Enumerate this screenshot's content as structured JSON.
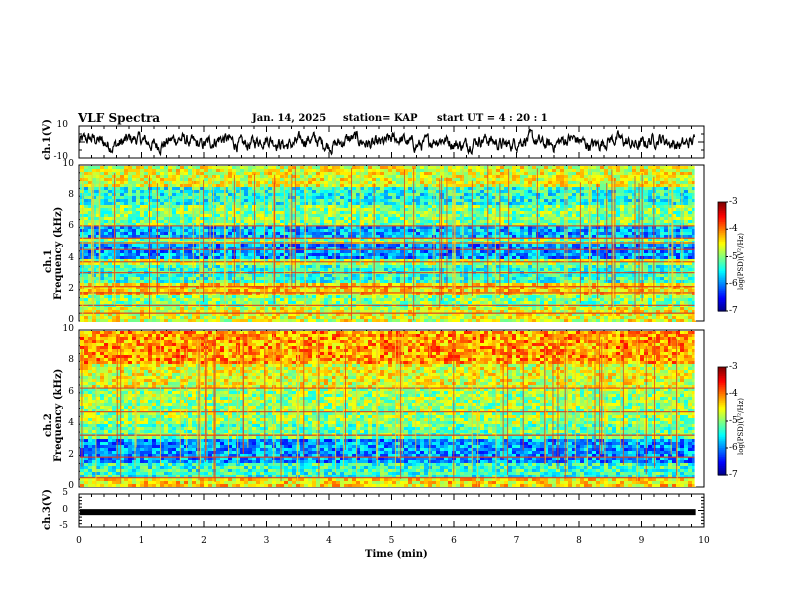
{
  "header": {
    "title": "VLF Spectra",
    "date": "Jan. 14, 2025",
    "station": "station= KAP",
    "start_ut": "start UT =  4 : 20 : 1"
  },
  "chart_data": [
    {
      "type": "line",
      "panel": "ch1-waveform",
      "ylabel": "ch.1(V)",
      "ylim": [
        -10,
        10
      ],
      "yticks": [
        "10",
        "-10"
      ],
      "xlim": [
        0,
        10
      ],
      "series": [
        {
          "name": "ch.1",
          "description_values": "oscillating signal roughly between -5 and 5 V",
          "amplitude": 5
        }
      ]
    },
    {
      "type": "heatmap",
      "panel": "ch1-spectrogram",
      "ylabel": "ch.1\nFrequency (kHz)",
      "ylabel_top": "ch.1",
      "ylabel_bottom": "Frequency (kHz)",
      "ylim": [
        0,
        10
      ],
      "yticks": [
        "0",
        "2",
        "4",
        "6",
        "8",
        "10"
      ],
      "xlim": [
        0,
        10
      ],
      "data_end_min": 9.85,
      "colorbar": {
        "range": [
          -7,
          -3
        ],
        "ticks": [
          "-3",
          "-4",
          "-5",
          "-6",
          "-7"
        ],
        "label": "log(PSD)(V²/Hz)"
      },
      "bands": [
        {
          "f": [
            0,
            1.0
          ],
          "level": -4.6
        },
        {
          "f": [
            1.0,
            1.8
          ],
          "level": -5.0
        },
        {
          "f": [
            1.8,
            2.6
          ],
          "level": -4.4
        },
        {
          "f": [
            2.6,
            3.6
          ],
          "level": -5.3
        },
        {
          "f": [
            3.6,
            4.0
          ],
          "level": -4.8
        },
        {
          "f": [
            4.0,
            5.0
          ],
          "level": -5.9
        },
        {
          "f": [
            5.0,
            5.5
          ],
          "level": -5.0
        },
        {
          "f": [
            5.5,
            6.1
          ],
          "level": -5.8
        },
        {
          "f": [
            6.1,
            7.5
          ],
          "level": -5.0
        },
        {
          "f": [
            7.5,
            8.6
          ],
          "level": -5.4
        },
        {
          "f": [
            8.6,
            10.0
          ],
          "level": -4.6
        }
      ],
      "lines_khz": [
        0.5,
        1.0,
        1.8,
        2.2,
        3.1,
        3.8,
        4.6,
        5.0,
        5.3,
        6.1
      ]
    },
    {
      "type": "heatmap",
      "panel": "ch2-spectrogram",
      "ylabel_top": "ch.2",
      "ylabel_bottom": "Frequency (kHz)",
      "ylim": [
        0,
        10
      ],
      "yticks": [
        "0",
        "2",
        "4",
        "6",
        "8",
        "10"
      ],
      "xlim": [
        0,
        10
      ],
      "data_end_min": 9.85,
      "colorbar": {
        "range": [
          -7,
          -3
        ],
        "ticks": [
          "-3",
          "-4",
          "-5",
          "-6",
          "-7"
        ],
        "label": "log(PSD)(V²/Hz)"
      },
      "bands": [
        {
          "f": [
            0,
            0.7
          ],
          "level": -4.4
        },
        {
          "f": [
            0.7,
            1.6
          ],
          "level": -5.3
        },
        {
          "f": [
            1.6,
            3.2
          ],
          "level": -5.9
        },
        {
          "f": [
            3.2,
            4.2
          ],
          "level": -5.1
        },
        {
          "f": [
            4.2,
            6.4
          ],
          "level": -4.9
        },
        {
          "f": [
            6.4,
            8.0
          ],
          "level": -4.6
        },
        {
          "f": [
            8.0,
            10.0
          ],
          "level": -4.1
        }
      ],
      "lines_khz": [
        0.6,
        1.9,
        3.3,
        4.8,
        6.3
      ]
    },
    {
      "type": "line",
      "panel": "ch3-signal",
      "ylabel": "ch.3(V)",
      "ylim": [
        -5,
        5
      ],
      "yticks": [
        "5",
        "0",
        "-5"
      ],
      "xlim": [
        0,
        10
      ],
      "xticks": [
        "0",
        "1",
        "2",
        "3",
        "4",
        "5",
        "6",
        "7",
        "8",
        "9",
        "10"
      ],
      "xlabel": "Time (min)",
      "series": [
        {
          "name": "ch.3",
          "level": -0.5
        }
      ]
    }
  ]
}
